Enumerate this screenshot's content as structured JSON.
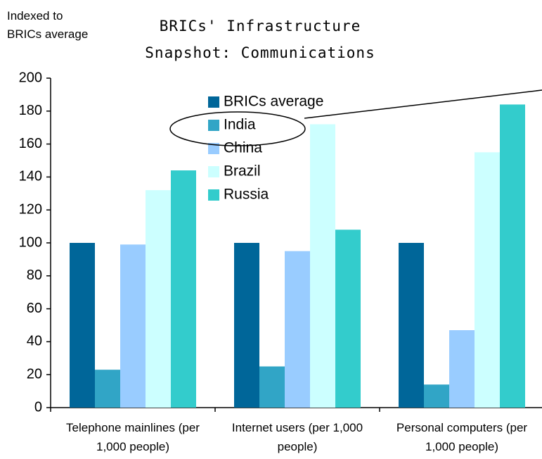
{
  "chart_data": {
    "type": "bar",
    "title": "BRICs' Infrastructure Snapshot: Communications",
    "y_label": "Indexed to BRICs average",
    "categories": [
      "Telephone mainlines (per 1,000 people)",
      "Internet users (per 1,000 people)",
      "Personal computers (per 1,000 people)"
    ],
    "series": [
      {
        "name": "BRICs average",
        "color": "#006699",
        "values": [
          100,
          100,
          100
        ]
      },
      {
        "name": "India",
        "color": "#31a5c6",
        "values": [
          23,
          25,
          14
        ]
      },
      {
        "name": "China",
        "color": "#99ccff",
        "values": [
          99,
          95,
          47
        ]
      },
      {
        "name": "Brazil",
        "color": "#ccffff",
        "values": [
          132,
          172,
          155
        ]
      },
      {
        "name": "Russia",
        "color": "#33cccc",
        "values": [
          144,
          108,
          184
        ]
      }
    ],
    "ylim": [
      0,
      200
    ],
    "yticks": [
      0,
      20,
      40,
      60,
      80,
      100,
      120,
      140,
      160,
      180,
      200
    ],
    "grid": false,
    "legend": "top"
  }
}
